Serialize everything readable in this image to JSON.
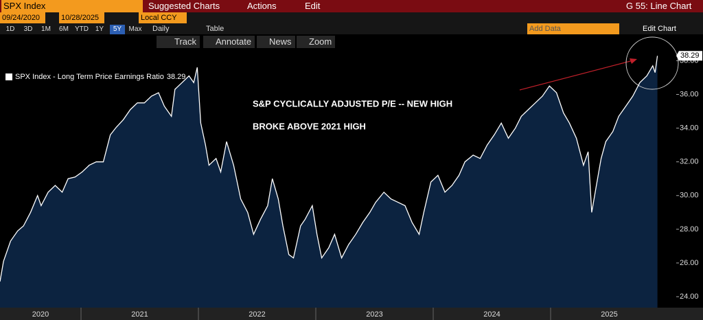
{
  "header": {
    "security": "SPX Index",
    "menus": [
      "Suggested Charts",
      "Actions",
      "Edit"
    ],
    "function_title": "G 55: Line Chart"
  },
  "date_range": {
    "start": "09/24/2020",
    "end": "10/28/2025",
    "currency": "Local CCY"
  },
  "periods": [
    "1D",
    "3D",
    "1M",
    "6M",
    "YTD",
    "1Y",
    "5Y",
    "Max"
  ],
  "frequency": "Daily",
  "table_button": "Table",
  "add_data": "Add Data",
  "edit_chart": "Edit Chart",
  "tools": [
    "Track",
    "Annotate",
    "News",
    "Zoom"
  ],
  "chart_data": {
    "type": "line",
    "fill_color": "#0c2340",
    "legend": "top-left",
    "grid": false,
    "annotations": [
      "S&P CYCLICALLY ADJUSTED P/E -- NEW HIGH",
      "BROKE ABOVE 2021 HIGH"
    ],
    "x": [
      2020.31,
      2020.34,
      2020.4,
      2020.46,
      2020.51,
      2020.57,
      2020.63,
      2020.66,
      2020.72,
      2020.78,
      2020.84,
      2020.89,
      2020.95,
      2021.01,
      2021.07,
      2021.13,
      2021.19,
      2021.25,
      2021.3,
      2021.36,
      2021.42,
      2021.48,
      2021.54,
      2021.6,
      2021.66,
      2021.71,
      2021.77,
      2021.8,
      2021.86,
      2021.92,
      2021.96,
      2021.99,
      2022.02,
      2022.06,
      2022.09,
      2022.15,
      2022.19,
      2022.24,
      2022.3,
      2022.36,
      2022.42,
      2022.47,
      2022.53,
      2022.59,
      2022.63,
      2022.68,
      2022.72,
      2022.77,
      2022.81,
      2022.87,
      2022.91,
      2022.97,
      2023.01,
      2023.05,
      2023.11,
      2023.16,
      2023.22,
      2023.28,
      2023.34,
      2023.4,
      2023.46,
      2023.51,
      2023.58,
      2023.64,
      2023.7,
      2023.76,
      2023.82,
      2023.88,
      2023.92,
      2023.98,
      2024.04,
      2024.1,
      2024.16,
      2024.22,
      2024.27,
      2024.34,
      2024.4,
      2024.46,
      2024.52,
      2024.58,
      2024.64,
      2024.7,
      2024.75,
      2024.81,
      2024.87,
      2024.93,
      2024.99,
      2025.05,
      2025.11,
      2025.16,
      2025.22,
      2025.28,
      2025.32,
      2025.35,
      2025.39,
      2025.43,
      2025.47,
      2025.53,
      2025.58,
      2025.64,
      2025.7,
      2025.76,
      2025.82,
      2025.87,
      2025.89,
      2025.91
    ],
    "series": [
      {
        "name": "SPX Index - Long Term Price Earnings Ratio",
        "color": "#ffffff",
        "values": [
          24.9,
          26.1,
          27.3,
          27.9,
          28.2,
          29.0,
          30.0,
          29.4,
          30.2,
          30.6,
          30.2,
          31.0,
          31.1,
          31.4,
          31.8,
          32.0,
          32.0,
          33.6,
          34.05,
          34.5,
          35.1,
          35.5,
          35.5,
          35.9,
          36.1,
          35.3,
          34.7,
          36.3,
          36.7,
          37.1,
          36.7,
          37.6,
          34.3,
          33.0,
          31.8,
          32.2,
          31.4,
          33.2,
          31.8,
          29.8,
          29.0,
          27.7,
          28.6,
          29.4,
          31.0,
          29.8,
          28.2,
          26.5,
          26.3,
          28.2,
          28.6,
          29.4,
          27.7,
          26.3,
          26.9,
          27.7,
          26.3,
          27.1,
          27.7,
          28.4,
          29.0,
          29.6,
          30.2,
          29.8,
          29.6,
          29.4,
          28.4,
          27.7,
          29.0,
          30.8,
          31.2,
          30.2,
          30.6,
          31.2,
          32.0,
          32.4,
          32.2,
          33.0,
          33.6,
          34.3,
          33.4,
          34.0,
          34.7,
          35.1,
          35.5,
          35.9,
          36.5,
          36.1,
          34.9,
          34.3,
          33.4,
          31.8,
          32.6,
          29.0,
          30.6,
          32.2,
          33.2,
          33.8,
          34.7,
          35.3,
          35.9,
          36.7,
          37.1,
          37.7,
          37.3,
          38.29
        ]
      }
    ],
    "xlim": [
      2020.31,
      2026.07
    ],
    "xticks": [
      2020,
      2021,
      2022,
      2023,
      2024,
      2025
    ],
    "ylim": [
      23.35,
      38.75
    ],
    "yticks": [
      {
        "value": 24,
        "label": "24.00"
      },
      {
        "value": 26,
        "label": "26.00"
      },
      {
        "value": 28,
        "label": "28.00"
      },
      {
        "value": 30,
        "label": "30.00"
      },
      {
        "value": 32,
        "label": "32.00"
      },
      {
        "value": 34,
        "label": "34.00"
      },
      {
        "value": 36,
        "label": "36.00"
      },
      {
        "value": 38,
        "label": "38.00"
      }
    ]
  }
}
